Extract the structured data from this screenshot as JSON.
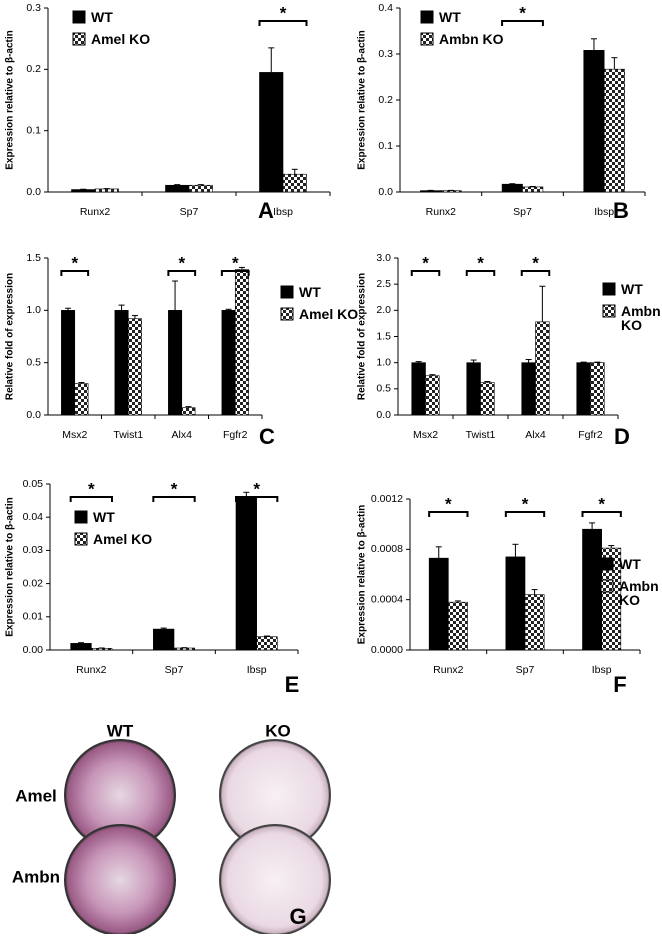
{
  "chart_data": [
    {
      "type": "bar",
      "panel": "A",
      "ylabel": "Expression relative to β-actin",
      "categories": [
        "Runx2",
        "Sp7",
        "Ibsp"
      ],
      "series": [
        {
          "name": "WT",
          "color": "#000000",
          "pattern": "solid",
          "values": [
            0.004,
            0.011,
            0.195
          ],
          "errors": [
            0.0005,
            0.001,
            0.04
          ]
        },
        {
          "name": "Amel KO",
          "color": "#000000",
          "pattern": "checker",
          "values": [
            0.005,
            0.011,
            0.029
          ],
          "errors": [
            0.0005,
            0.001,
            0.008
          ]
        }
      ],
      "significant": [
        false,
        false,
        true
      ],
      "significance_label": "*",
      "ylim": [
        0,
        0.3
      ],
      "yticks": [
        {
          "value": 0,
          "label": "0.0"
        },
        0.1,
        0.2,
        0.3
      ]
    },
    {
      "type": "bar",
      "panel": "B",
      "ylabel": "Expression relative to β-actin",
      "categories": [
        "Runx2",
        "Sp7",
        "Ibsp"
      ],
      "series": [
        {
          "name": "WT",
          "color": "#000000",
          "pattern": "solid",
          "values": [
            0.003,
            0.017,
            0.308
          ],
          "errors": [
            0.0005,
            0.001,
            0.025
          ]
        },
        {
          "name": "Ambn KO",
          "color": "#000000",
          "pattern": "checker",
          "values": [
            0.003,
            0.011,
            0.267
          ],
          "errors": [
            0.0005,
            0.001,
            0.025
          ]
        }
      ],
      "significant": [
        false,
        true,
        false
      ],
      "significance_label": "*",
      "ylim": [
        0,
        0.4
      ],
      "yticks": [
        {
          "value": 0,
          "label": "0.0"
        },
        0.1,
        0.2,
        0.3,
        0.4
      ]
    },
    {
      "type": "bar",
      "panel": "C",
      "ylabel": "Relative fold of expression",
      "categories": [
        "Msx2",
        "Twist1",
        "Alx4",
        "Fgfr2"
      ],
      "series": [
        {
          "name": "WT",
          "color": "#000000",
          "pattern": "solid",
          "values": [
            1.0,
            1.0,
            1.0,
            1.0
          ],
          "errors": [
            0.02,
            0.05,
            0.28,
            0.01
          ]
        },
        {
          "name": "Amel KO",
          "color": "#000000",
          "pattern": "checker",
          "values": [
            0.3,
            0.92,
            0.07,
            1.39
          ],
          "errors": [
            0.01,
            0.03,
            0.01,
            0.02
          ]
        }
      ],
      "significant": [
        true,
        false,
        true,
        true
      ],
      "significance_label": "*",
      "ylim": [
        0,
        1.5
      ],
      "yticks": [
        {
          "value": 0,
          "label": "0.0"
        },
        0.5,
        {
          "value": 1,
          "label": "1.0"
        },
        1.5
      ]
    },
    {
      "type": "bar",
      "panel": "D",
      "ylabel": "Relative fold of expression",
      "categories": [
        "Msx2",
        "Twist1",
        "Alx4",
        "Fgfr2"
      ],
      "series": [
        {
          "name": "WT",
          "color": "#000000",
          "pattern": "solid",
          "values": [
            1.0,
            1.0,
            1.0,
            1.0
          ],
          "errors": [
            0.02,
            0.05,
            0.06,
            0.01
          ]
        },
        {
          "name": "Ambn KO",
          "color": "#000000",
          "pattern": "checker",
          "values": [
            0.75,
            0.62,
            1.78,
            1.0
          ],
          "errors": [
            0.02,
            0.02,
            0.68,
            0.01
          ]
        }
      ],
      "significant": [
        true,
        true,
        true,
        false
      ],
      "significance_label": "*",
      "ylim": [
        0,
        3
      ],
      "yticks": [
        {
          "value": 0,
          "label": "0.0"
        },
        0.5,
        {
          "value": 1,
          "label": "1.0"
        },
        1.5,
        {
          "value": 2,
          "label": "2.0"
        },
        2.5,
        {
          "value": 3,
          "label": "3.0"
        }
      ]
    },
    {
      "type": "bar",
      "panel": "E",
      "ylabel": "Expression relative to β-actin",
      "categories": [
        "Runx2",
        "Sp7",
        "Ibsp"
      ],
      "series": [
        {
          "name": "WT",
          "color": "#000000",
          "pattern": "solid",
          "values": [
            0.002,
            0.0063,
            0.046
          ],
          "errors": [
            0.0002,
            0.0003,
            0.0015
          ]
        },
        {
          "name": "Amel KO",
          "color": "#000000",
          "pattern": "checker",
          "values": [
            0.0005,
            0.0006,
            0.004
          ],
          "errors": [
            0.0001,
            0.0001,
            0.0002
          ]
        }
      ],
      "significant": [
        true,
        true,
        true
      ],
      "significance_label": "*",
      "ylim": [
        0,
        0.05
      ],
      "yticks": [
        {
          "value": 0,
          "label": "0.00"
        },
        0.01,
        0.02,
        0.03,
        0.04,
        0.05
      ]
    },
    {
      "type": "bar",
      "panel": "F",
      "ylabel": "Expression relative to β-actin",
      "categories": [
        "Runx2",
        "Sp7",
        "Ibsp"
      ],
      "series": [
        {
          "name": "WT",
          "color": "#000000",
          "pattern": "solid",
          "values": [
            0.00073,
            0.00074,
            0.00096
          ],
          "errors": [
            9e-05,
            0.0001,
            5e-05
          ]
        },
        {
          "name": "Ambn KO",
          "color": "#000000",
          "pattern": "checker",
          "values": [
            0.00038,
            0.00044,
            0.00081
          ],
          "errors": [
            1e-05,
            4e-05,
            2e-05
          ]
        }
      ],
      "significant": [
        true,
        true,
        true
      ],
      "significance_label": "*",
      "ylim": [
        0,
        0.0012
      ],
      "yticks": [
        {
          "value": 0,
          "label": "0.0000"
        },
        0.0004,
        0.0008,
        0.0012
      ]
    }
  ],
  "panel_g": {
    "letter": "G",
    "columns": [
      "WT",
      "KO"
    ],
    "rows": [
      "Amel",
      "Ambn"
    ]
  }
}
